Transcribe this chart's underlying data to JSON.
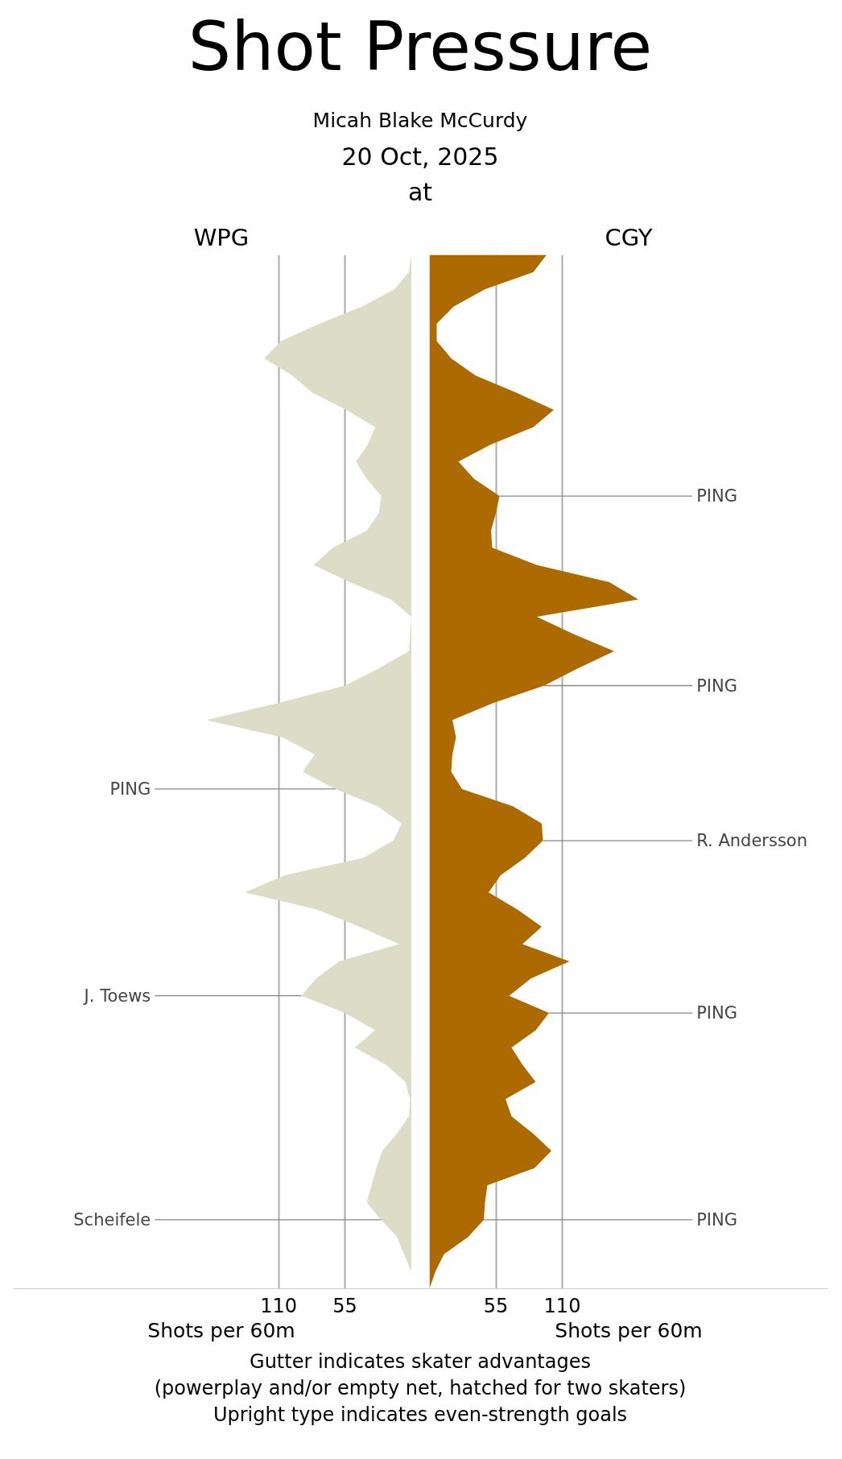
{
  "chart_data": [
    {
      "type": "area",
      "orientation": "horizontal",
      "title": "Shot Pressure",
      "subtitle": "Micah Blake McCurdy",
      "xlabel": "Shots per 60m",
      "xlim": [
        330,
        -15
      ],
      "xticks": [
        110,
        55
      ],
      "grid": "x",
      "tick_labels": "x",
      "legend": false,
      "categories": [
        null,
        null,
        null,
        null,
        null,
        null,
        null,
        null,
        null,
        null,
        null,
        null,
        null,
        null,
        null,
        null,
        null,
        null,
        null,
        null,
        null,
        null,
        null,
        null,
        null,
        null,
        null,
        null,
        null,
        null,
        null,
        null,
        null,
        null,
        null,
        null,
        null,
        null,
        null,
        null,
        null,
        null,
        null,
        null,
        null,
        null,
        null,
        null,
        null,
        null,
        null,
        null,
        null,
        null,
        null,
        null,
        null,
        null,
        null,
        null,
        null
      ],
      "series": [
        {
          "name": "WPG",
          "color": "#dddcc6",
          "values": [
            0,
            2,
            14,
            41,
            76,
            108,
            122,
            99,
            82,
            54,
            30,
            36,
            46,
            37,
            25,
            27,
            37,
            65,
            81,
            51,
            17,
            0,
            1,
            2,
            27,
            55,
            110,
            170,
            107,
            80,
            90,
            63,
            28,
            8,
            15,
            40,
            105,
            138,
            78,
            43,
            10,
            60,
            79,
            91,
            55,
            30,
            47,
            21,
            5,
            1,
            2,
            12,
            24,
            29,
            33,
            37,
            25,
            12,
            6,
            0,
            0
          ],
          "value_labels": [
            null,
            null,
            null,
            null,
            null,
            null,
            null,
            null,
            null,
            null,
            null,
            null,
            null,
            null,
            null,
            null,
            null,
            null,
            null,
            null,
            null,
            null,
            null,
            null,
            null,
            null,
            null,
            null,
            null,
            null,
            null,
            "PING",
            null,
            null,
            null,
            null,
            null,
            null,
            null,
            null,
            null,
            null,
            null,
            "J. Toews",
            null,
            null,
            null,
            null,
            null,
            null,
            null,
            null,
            null,
            null,
            null,
            null,
            "Scheifele",
            null,
            null,
            null,
            null
          ]
        }
      ],
      "annotations": [
        "20 Oct, 2025",
        "at",
        "Gutter indicates skater advantages",
        "(powerplay and/or empty net, hatched for two skaters)",
        "Upright type indicates even-strength goals"
      ]
    },
    {
      "type": "area",
      "orientation": "horizontal",
      "xlabel": "Shots per 60m",
      "xlim": [
        0,
        330
      ],
      "xticks": [
        55,
        110
      ],
      "grid": "x",
      "tick_labels": "x",
      "legend": false,
      "categories": [
        null,
        null,
        null,
        null,
        null,
        null,
        null,
        null,
        null,
        null,
        null,
        null,
        null,
        null,
        null,
        null,
        null,
        null,
        null,
        null,
        null,
        null,
        null,
        null,
        null,
        null,
        null,
        null,
        null,
        null,
        null,
        null,
        null,
        null,
        null,
        null,
        null,
        null,
        null,
        null,
        null,
        null,
        null,
        null,
        null,
        null,
        null,
        null,
        null,
        null,
        null,
        null,
        null,
        null,
        null,
        null,
        null,
        null,
        null,
        null,
        null
      ],
      "series": [
        {
          "name": "CGY",
          "color": "#ad6a00",
          "values": [
            97,
            86,
            46,
            20,
            6,
            6,
            18,
            38,
            72,
            103,
            86,
            51,
            24,
            37,
            58,
            55,
            51,
            52,
            89,
            149,
            173,
            89,
            119,
            153,
            123,
            95,
            53,
            19,
            22,
            19,
            18,
            27,
            69,
            93,
            94,
            79,
            59,
            49,
            73,
            93,
            77,
            116,
            84,
            66,
            99,
            88,
            68,
            77,
            88,
            63,
            68,
            86,
            101,
            87,
            48,
            46,
            45,
            32,
            12,
            5,
            0
          ],
          "value_labels": [
            null,
            null,
            null,
            null,
            null,
            null,
            null,
            null,
            null,
            null,
            null,
            null,
            null,
            null,
            "PING",
            null,
            null,
            null,
            null,
            null,
            null,
            null,
            null,
            null,
            null,
            "PING",
            null,
            null,
            null,
            null,
            null,
            null,
            null,
            null,
            "R. Andersson",
            null,
            null,
            null,
            null,
            null,
            null,
            null,
            null,
            null,
            "PING",
            null,
            null,
            null,
            null,
            null,
            null,
            null,
            null,
            null,
            null,
            null,
            "PING",
            null,
            null,
            null,
            null
          ]
        }
      ]
    }
  ]
}
